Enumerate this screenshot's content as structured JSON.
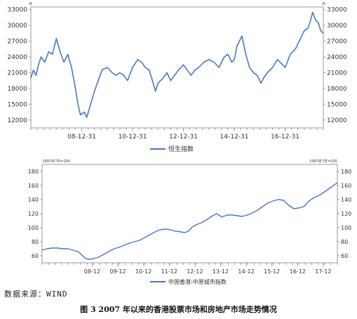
{
  "source_note": "数据来源：WIND",
  "caption": "图 3   2007 年以来的香港股票市场和房地产市场走势情况",
  "colors": {
    "line": "#4a78c2",
    "axis": "#9a9a9a",
    "text": "#333333"
  },
  "chart_data": [
    {
      "type": "line",
      "name": "hsi",
      "xlabel": "",
      "ylabel": "",
      "title": "",
      "ylim": [
        10500,
        33500
      ],
      "y_ticks": [
        12000,
        15000,
        18000,
        21000,
        24000,
        27000,
        30000,
        33000
      ],
      "y_tick_labels": [
        "12000",
        "15000",
        "18000",
        "21000",
        "24000",
        "27000",
        "30000",
        "33000"
      ],
      "x_tick_labels": [
        "08-12-31",
        "10-12-31",
        "12-12-31",
        "14-12-31",
        "16-12-31"
      ],
      "x_tick_values": [
        2009.0,
        2011.0,
        2013.0,
        2015.0,
        2017.0
      ],
      "xlim": [
        2007.0,
        2018.5
      ],
      "legend": "top-bottom",
      "unit_markers": [
        "点",
        "点"
      ],
      "series": [
        {
          "name": "恒生指数",
          "x": [
            2007.0,
            2007.1,
            2007.2,
            2007.3,
            2007.4,
            2007.55,
            2007.7,
            2007.85,
            2008.0,
            2008.15,
            2008.3,
            2008.45,
            2008.6,
            2008.75,
            2008.85,
            2008.95,
            2009.1,
            2009.2,
            2009.35,
            2009.5,
            2009.65,
            2009.8,
            2010.0,
            2010.2,
            2010.35,
            2010.5,
            2010.65,
            2010.8,
            2011.0,
            2011.2,
            2011.35,
            2011.5,
            2011.65,
            2011.75,
            2011.9,
            2012.0,
            2012.2,
            2012.35,
            2012.5,
            2012.65,
            2012.8,
            2013.0,
            2013.15,
            2013.3,
            2013.45,
            2013.6,
            2013.8,
            2014.0,
            2014.2,
            2014.4,
            2014.6,
            2014.75,
            2014.9,
            2015.0,
            2015.1,
            2015.3,
            2015.45,
            2015.6,
            2015.75,
            2015.9,
            2016.05,
            2016.15,
            2016.3,
            2016.5,
            2016.7,
            2016.9,
            2017.0,
            2017.2,
            2017.4,
            2017.6,
            2017.75,
            2017.9,
            2018.0,
            2018.08,
            2018.2,
            2018.3,
            2018.4,
            2018.5
          ],
          "values": [
            20000,
            21500,
            20500,
            22500,
            24000,
            23000,
            25000,
            24500,
            27500,
            25000,
            23000,
            24500,
            22000,
            18000,
            15000,
            13000,
            13500,
            12500,
            15000,
            17500,
            19500,
            21500,
            22000,
            21000,
            20500,
            21000,
            20500,
            19500,
            22000,
            23500,
            23000,
            22000,
            21500,
            20000,
            17500,
            19000,
            20000,
            21000,
            19500,
            20500,
            21500,
            22500,
            21500,
            20500,
            21500,
            22000,
            23000,
            23500,
            23000,
            22000,
            24000,
            24500,
            23000,
            23500,
            26000,
            28000,
            24500,
            22000,
            21000,
            20500,
            19000,
            20000,
            21000,
            22000,
            23500,
            22500,
            22000,
            24500,
            25500,
            27500,
            29000,
            29500,
            31000,
            32500,
            31000,
            30500,
            29000,
            28500
          ]
        }
      ]
    },
    {
      "type": "line",
      "name": "property",
      "xlabel": "",
      "ylabel": "",
      "title": "",
      "ylim": [
        50,
        190
      ],
      "y_ticks": [
        60,
        80,
        100,
        120,
        140,
        160,
        180
      ],
      "y_tick_labels": [
        "60",
        "80",
        "100",
        "120",
        "140",
        "160",
        "180"
      ],
      "x_tick_labels": [
        "08-12",
        "09-12",
        "10-12",
        "11-12",
        "12-12",
        "13-12",
        "14-12",
        "15-12",
        "16-12",
        "17-12"
      ],
      "x_tick_values": [
        2008.95,
        2009.95,
        2010.95,
        2011.95,
        2012.95,
        2013.95,
        2014.95,
        2015.95,
        2016.95,
        2017.95
      ],
      "xlim": [
        2007.0,
        2018.5
      ],
      "legend": "bottom",
      "unit_markers": [
        "1997年7月=100",
        "1997年7月=100"
      ],
      "series": [
        {
          "name": "中国香港:中原城市指数",
          "x": [
            2007.0,
            2007.2,
            2007.4,
            2007.6,
            2007.8,
            2008.0,
            2008.2,
            2008.4,
            2008.55,
            2008.7,
            2008.85,
            2009.0,
            2009.2,
            2009.4,
            2009.6,
            2009.8,
            2010.0,
            2010.2,
            2010.4,
            2010.6,
            2010.8,
            2011.0,
            2011.2,
            2011.4,
            2011.6,
            2011.8,
            2012.0,
            2012.2,
            2012.4,
            2012.55,
            2012.7,
            2012.85,
            2013.0,
            2013.2,
            2013.4,
            2013.6,
            2013.8,
            2014.0,
            2014.2,
            2014.4,
            2014.6,
            2014.8,
            2015.0,
            2015.2,
            2015.4,
            2015.55,
            2015.7,
            2015.85,
            2016.0,
            2016.2,
            2016.4,
            2016.6,
            2016.8,
            2017.0,
            2017.2,
            2017.4,
            2017.6,
            2017.8,
            2018.0,
            2018.2,
            2018.35,
            2018.5
          ],
          "values": [
            68,
            70,
            71,
            71,
            70,
            70,
            68,
            66,
            61,
            56,
            55,
            56,
            58,
            62,
            66,
            70,
            72,
            75,
            78,
            80,
            82,
            86,
            90,
            94,
            97,
            98,
            97,
            95,
            94,
            93,
            95,
            101,
            104,
            107,
            111,
            116,
            120,
            115,
            118,
            118,
            117,
            116,
            118,
            121,
            125,
            129,
            133,
            136,
            138,
            140,
            139,
            132,
            127,
            128,
            130,
            138,
            143,
            146,
            151,
            156,
            160,
            164
          ]
        }
      ]
    }
  ]
}
